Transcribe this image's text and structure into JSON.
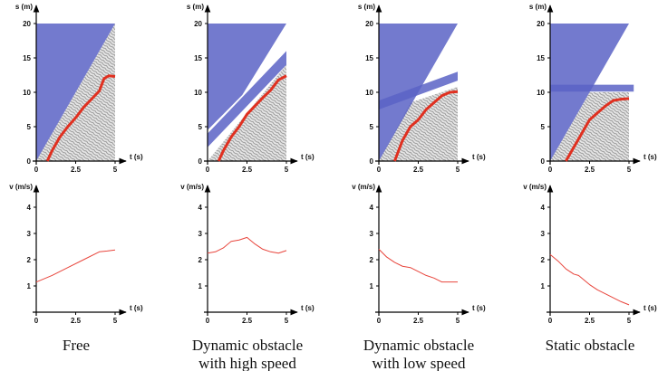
{
  "chart_data": [
    {
      "type": "line",
      "ylabel": "s (m)",
      "xlabel": "t (s)",
      "xlim": [
        0,
        5
      ],
      "ylim": [
        0,
        20
      ],
      "xticks": [
        0,
        2.5,
        5
      ],
      "yticks": [
        0,
        5,
        10,
        15,
        20
      ],
      "regions": [
        {
          "color": "#b8b8b8",
          "texture": true,
          "x": [
            0,
            5,
            5
          ],
          "y": [
            0,
            20,
            0
          ]
        },
        {
          "color": "#5b63c6",
          "texture": false,
          "x": [
            0,
            0,
            5
          ],
          "y": [
            0,
            20,
            20
          ]
        }
      ],
      "x": [
        0.7,
        1,
        1.5,
        2,
        2.5,
        3,
        3.5,
        4,
        4.3,
        4.6,
        5
      ],
      "values": [
        0,
        1.5,
        3.5,
        5,
        6.3,
        7.8,
        9,
        10.2,
        12,
        12.4,
        12.3
      ],
      "color": "#e03020",
      "line_width": 3
    },
    {
      "type": "line",
      "ylabel": "s (m)",
      "xlabel": "t (s)",
      "xlim": [
        0,
        5
      ],
      "ylim": [
        0,
        20
      ],
      "xticks": [
        0,
        2.5,
        5
      ],
      "yticks": [
        0,
        5,
        10,
        15,
        20
      ],
      "regions": [
        {
          "color": "#b8b8b8",
          "texture": true,
          "x": [
            0,
            5,
            5
          ],
          "y": [
            0,
            14,
            0
          ]
        },
        {
          "color": "#5b63c6",
          "texture": false,
          "x": [
            0,
            0,
            5,
            2.2
          ],
          "y": [
            4.5,
            20,
            20,
            9.6
          ]
        },
        {
          "color": "#5b63c6",
          "texture": false,
          "x": [
            0,
            0,
            5,
            5
          ],
          "y": [
            2,
            4,
            16,
            14
          ]
        }
      ],
      "x": [
        0.7,
        1,
        1.5,
        2,
        2.5,
        3,
        3.5,
        4,
        4.5,
        5
      ],
      "values": [
        0,
        1.5,
        3.5,
        5,
        6.8,
        8,
        9.2,
        10.3,
        11.8,
        12.4
      ],
      "color": "#e03020",
      "line_width": 3
    },
    {
      "type": "line",
      "ylabel": "s (m)",
      "xlabel": "t (s)",
      "xlim": [
        0,
        5
      ],
      "ylim": [
        0,
        20
      ],
      "xticks": [
        0,
        2.5,
        5
      ],
      "yticks": [
        0,
        5,
        10,
        15,
        20
      ],
      "regions": [
        {
          "color": "#b8b8b8",
          "texture": true,
          "x": [
            0,
            2,
            5,
            5
          ],
          "y": [
            0,
            8.5,
            10.8,
            0
          ]
        },
        {
          "color": "#5b63c6",
          "texture": false,
          "x": [
            0,
            0,
            5
          ],
          "y": [
            0,
            20,
            20
          ]
        },
        {
          "color": "#5b63c6",
          "texture": false,
          "x": [
            0,
            0,
            5,
            5
          ],
          "y": [
            7.5,
            8.8,
            13,
            11.7
          ]
        }
      ],
      "x": [
        1,
        1.5,
        2,
        2.5,
        3,
        3.5,
        4,
        4.5,
        5
      ],
      "values": [
        0,
        3,
        5,
        6,
        7.5,
        8.5,
        9.5,
        10,
        10.1
      ],
      "color": "#e03020",
      "line_width": 3
    },
    {
      "type": "line",
      "ylabel": "s (m)",
      "xlabel": "t (s)",
      "xlim": [
        0,
        5
      ],
      "ylim": [
        0,
        20
      ],
      "xticks": [
        0,
        2.5,
        5
      ],
      "yticks": [
        0,
        5,
        10,
        15,
        20
      ],
      "regions": [
        {
          "color": "#b8b8b8",
          "texture": true,
          "x": [
            0,
            2.5,
            5,
            5
          ],
          "y": [
            0,
            10,
            10,
            0
          ]
        },
        {
          "color": "#5b63c6",
          "texture": false,
          "x": [
            0,
            0,
            5
          ],
          "y": [
            0,
            20,
            20
          ]
        },
        {
          "color": "#5b63c6",
          "texture": false,
          "x": [
            0,
            0,
            5.3,
            5.3
          ],
          "y": [
            10.1,
            11.1,
            11.1,
            10.1
          ]
        }
      ],
      "x": [
        1,
        1.5,
        2,
        2.5,
        3,
        3.5,
        4,
        4.5,
        5
      ],
      "values": [
        0,
        2,
        4,
        6,
        7,
        8,
        8.8,
        9,
        9.1
      ],
      "color": "#e03020",
      "line_width": 3
    },
    {
      "type": "line",
      "ylabel": "v (m/s)",
      "xlabel": "t (s)",
      "xlim": [
        0,
        5
      ],
      "ylim": [
        0,
        4
      ],
      "xticks": [
        0,
        2.5,
        5
      ],
      "yticks": [
        1,
        2,
        3,
        4
      ],
      "regions": [],
      "x": [
        0,
        1,
        2,
        3,
        4,
        4.5,
        5
      ],
      "values": [
        1.15,
        1.4,
        1.7,
        2,
        2.3,
        2.33,
        2.37
      ],
      "color": "#e8453c",
      "line_width": 1
    },
    {
      "type": "line",
      "ylabel": "v (m/s)",
      "xlabel": "t (s)",
      "xlim": [
        0,
        5
      ],
      "ylim": [
        0,
        4
      ],
      "xticks": [
        0,
        2.5,
        5
      ],
      "yticks": [
        1,
        2,
        3,
        4
      ],
      "regions": [],
      "x": [
        0,
        0.5,
        1,
        1.5,
        2,
        2.5,
        3,
        3.5,
        4,
        4.5,
        5
      ],
      "values": [
        2.25,
        2.3,
        2.45,
        2.7,
        2.75,
        2.85,
        2.6,
        2.4,
        2.3,
        2.25,
        2.35
      ],
      "color": "#e8453c",
      "line_width": 1
    },
    {
      "type": "line",
      "ylabel": "v (m/s)",
      "xlabel": "t (s)",
      "xlim": [
        0,
        5
      ],
      "ylim": [
        0,
        4
      ],
      "xticks": [
        0,
        2.5,
        5
      ],
      "yticks": [
        1,
        2,
        3,
        4
      ],
      "regions": [],
      "x": [
        0,
        0.5,
        1,
        1.5,
        2,
        2.5,
        3,
        3.5,
        4,
        4.5,
        5
      ],
      "values": [
        2.4,
        2.1,
        1.9,
        1.75,
        1.7,
        1.55,
        1.4,
        1.3,
        1.15,
        1.15,
        1.15
      ],
      "color": "#e8453c",
      "line_width": 1
    },
    {
      "type": "line",
      "ylabel": "v (m/s)",
      "xlabel": "t (s)",
      "xlim": [
        0,
        5
      ],
      "ylim": [
        0,
        4
      ],
      "xticks": [
        0,
        2.5,
        5
      ],
      "yticks": [
        1,
        2,
        3,
        4
      ],
      "regions": [],
      "x": [
        0,
        0.5,
        1,
        1.5,
        1.8,
        2.5,
        3,
        3.5,
        4,
        4.5,
        5
      ],
      "values": [
        2.2,
        1.95,
        1.65,
        1.45,
        1.4,
        1.05,
        0.85,
        0.7,
        0.55,
        0.4,
        0.28
      ],
      "color": "#e8453c",
      "line_width": 1
    }
  ],
  "captions": [
    [
      "Free"
    ],
    [
      "Dynamic obstacle",
      "with high speed"
    ],
    [
      "Dynamic obstacle",
      "with low speed"
    ],
    [
      "Static obstacle"
    ]
  ]
}
